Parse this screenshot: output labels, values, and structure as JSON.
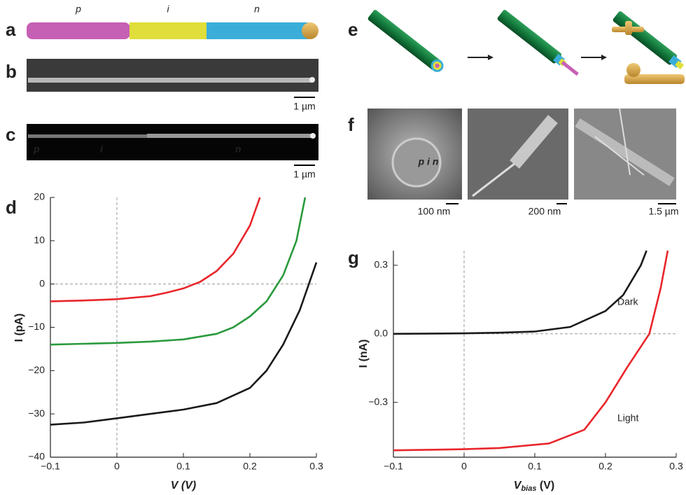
{
  "panels": {
    "letters": [
      "a",
      "b",
      "c",
      "d",
      "e",
      "f",
      "g"
    ],
    "a": {
      "labels": [
        "p",
        "i",
        "n"
      ]
    },
    "b": {
      "scale": "1 µm"
    },
    "c": {
      "labels": [
        "p",
        "i",
        "n"
      ],
      "scale": "1 µm"
    },
    "f": {
      "inset": "p i n",
      "scales": [
        "100 nm",
        "200 nm",
        "1.5 µm"
      ]
    }
  },
  "chart_data": [
    {
      "type": "line",
      "ylabel": "I (pA)",
      "xlabel": "V (V)",
      "xlim": [
        -0.1,
        0.3
      ],
      "ylim": [
        -40,
        20
      ],
      "xticks": [
        {
          "value": -0.1,
          "label": "−0.1"
        },
        0,
        0.1,
        0.2,
        0.3
      ],
      "yticks": [
        {
          "value": -40,
          "label": "−40"
        },
        {
          "value": -30,
          "label": "−30"
        },
        {
          "value": -20,
          "label": "−20"
        },
        {
          "value": -10,
          "label": "−10"
        },
        0,
        10,
        20
      ],
      "series": [
        {
          "color": "#e8262b",
          "x": [
            -0.1,
            -0.05,
            0,
            0.05,
            0.075,
            0.1,
            0.125,
            0.15,
            0.175,
            0.2,
            0.215
          ],
          "values": [
            -4,
            -3.8,
            -3.5,
            -2.8,
            -2,
            -1,
            0.5,
            3,
            7,
            13.5,
            20
          ]
        },
        {
          "color": "#2a9a3c",
          "x": [
            -0.1,
            -0.05,
            0,
            0.05,
            0.1,
            0.15,
            0.175,
            0.2,
            0.225,
            0.25,
            0.27,
            0.283
          ],
          "values": [
            -14,
            -13.8,
            -13.6,
            -13.3,
            -12.8,
            -11.5,
            -10,
            -7.5,
            -4,
            2,
            10,
            20
          ]
        },
        {
          "color": "#1a1a1a",
          "x": [
            -0.1,
            -0.05,
            0,
            0.05,
            0.1,
            0.15,
            0.2,
            0.225,
            0.25,
            0.275,
            0.3
          ],
          "values": [
            -32.5,
            -32,
            -31,
            -30,
            -29,
            -27.5,
            -24,
            -20,
            -14,
            -6,
            5
          ]
        }
      ]
    },
    {
      "type": "line",
      "ylabel": "I (nA)",
      "xlabel": "V",
      "xlabel_sub": "bias",
      "xlabel_unit": " (V)",
      "xlim": [
        -0.1,
        0.3
      ],
      "ylim": [
        -0.54,
        0.364
      ],
      "xticks": [
        {
          "value": -0.1,
          "label": "−0.1"
        },
        0,
        0.1,
        0.2,
        0.3
      ],
      "yticks": [
        {
          "value": -0.3,
          "label": "−0.3"
        },
        {
          "value": 0,
          "label": "0.0"
        },
        0.3
      ],
      "series": [
        {
          "name": "Dark",
          "color": "#1a1a1a",
          "x": [
            -0.1,
            0,
            0.05,
            0.1,
            0.15,
            0.2,
            0.225,
            0.25,
            0.258
          ],
          "values": [
            0,
            0.002,
            0.005,
            0.01,
            0.03,
            0.1,
            0.17,
            0.3,
            0.364
          ]
        },
        {
          "name": "Light",
          "color": "#e8262b",
          "x": [
            -0.1,
            0,
            0.05,
            0.12,
            0.17,
            0.2,
            0.23,
            0.262,
            0.278,
            0.288
          ],
          "values": [
            -0.51,
            -0.505,
            -0.5,
            -0.48,
            -0.42,
            -0.3,
            -0.15,
            0,
            0.2,
            0.364
          ]
        }
      ]
    }
  ]
}
